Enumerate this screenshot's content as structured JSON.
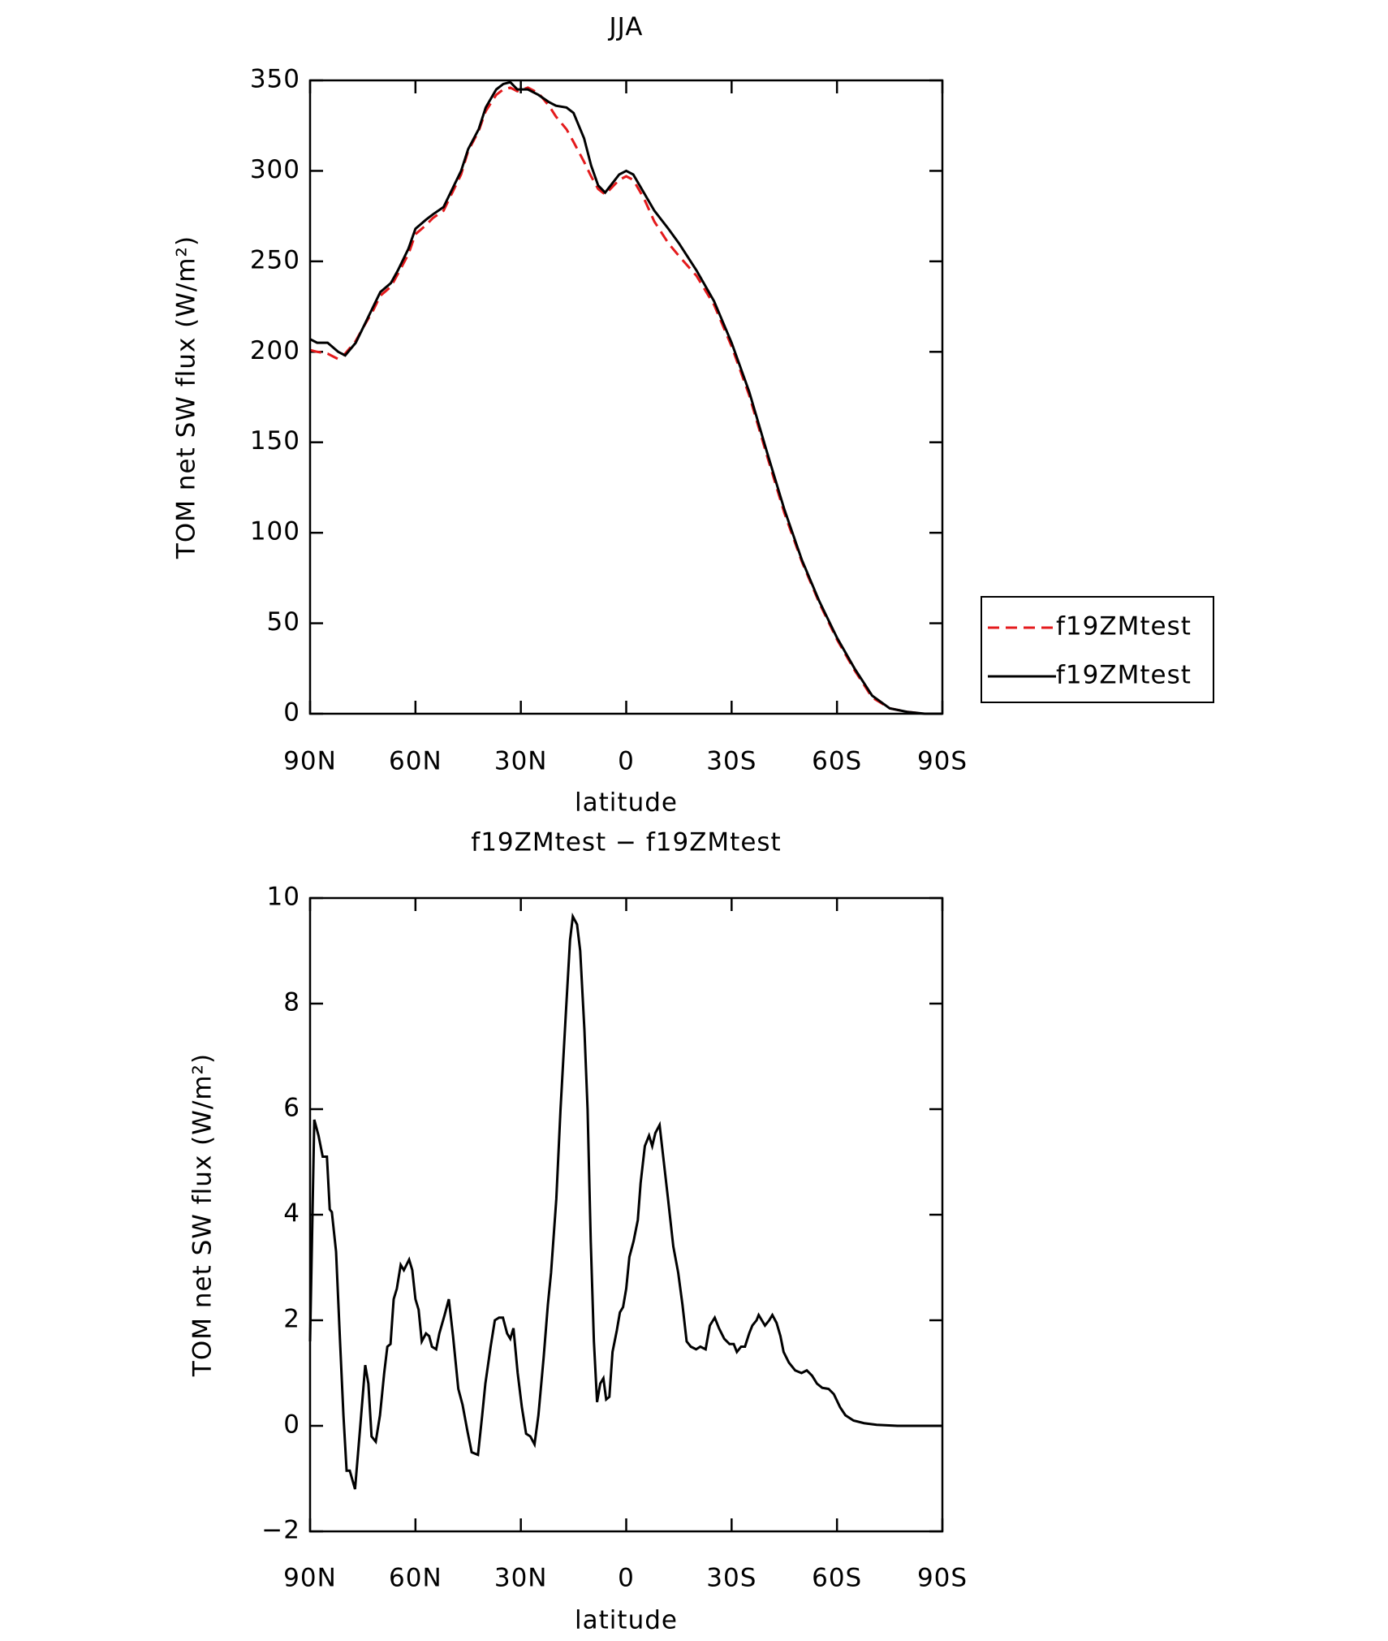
{
  "chart_data": [
    {
      "type": "line",
      "title": "JJA",
      "xlabel": "latitude",
      "ylabel": "TOM net SW flux (W/m²)",
      "x": [
        90,
        88,
        85,
        82,
        80,
        77,
        75,
        72,
        70,
        67,
        65,
        62,
        60,
        57,
        55,
        52,
        50,
        47,
        45,
        42,
        40,
        37,
        35,
        33,
        31,
        28,
        25,
        22,
        20,
        17,
        15,
        12,
        10,
        8,
        6,
        4,
        2,
        0,
        -2,
        -5,
        -8,
        -12,
        -15,
        -20,
        -25,
        -30,
        -35,
        -40,
        -45,
        -50,
        -55,
        -60,
        -65,
        -70,
        -75,
        -80,
        -85,
        -90
      ],
      "series": [
        {
          "name": "f19ZMtest",
          "color": "#e41a1c",
          "dash": true,
          "values": [
            201,
            200,
            199,
            196,
            199,
            206,
            213,
            223,
            231,
            236,
            243,
            254,
            265,
            270,
            274,
            278,
            286,
            298,
            311,
            322,
            333,
            342,
            345,
            346,
            344,
            346,
            343,
            336,
            330,
            323,
            316,
            305,
            297,
            290,
            287,
            291,
            295,
            297,
            295,
            285,
            272,
            260,
            253,
            242,
            226,
            203,
            176,
            143,
            111,
            84,
            61,
            41,
            24,
            9,
            3,
            1,
            0,
            0
          ]
        },
        {
          "name": "f19ZMtest",
          "color": "#000000",
          "dash": false,
          "values": [
            207,
            205,
            205,
            200,
            198,
            205,
            213,
            225,
            233,
            238,
            245,
            257,
            268,
            273,
            276,
            280,
            288,
            300,
            312,
            323,
            335,
            345,
            348,
            349,
            345,
            345,
            342,
            338,
            336,
            335,
            332,
            318,
            303,
            292,
            288,
            293,
            298,
            300,
            298,
            288,
            278,
            268,
            260,
            245,
            228,
            205,
            178,
            145,
            113,
            85,
            62,
            42,
            25,
            10,
            3,
            1,
            0,
            0
          ]
        }
      ],
      "xlim": [
        90,
        -90
      ],
      "xticks": [
        {
          "value": 90,
          "label": "90N"
        },
        {
          "value": 60,
          "label": "60N"
        },
        {
          "value": 30,
          "label": "30N"
        },
        0,
        {
          "value": -30,
          "label": "30S"
        },
        {
          "value": -60,
          "label": "60S"
        },
        {
          "value": -90,
          "label": "90S"
        }
      ],
      "ylim": [
        0,
        350
      ],
      "yticks": [
        0,
        50,
        100,
        150,
        200,
        250,
        300,
        350
      ],
      "legend": "right"
    },
    {
      "type": "line",
      "title": "f19ZMtest − f19ZMtest",
      "xlabel": "latitude",
      "ylabel": "TOM net SW flux (W/m²)",
      "x": [
        90,
        88.8,
        87.6,
        86.4,
        85.2,
        84.4,
        83.8,
        82.6,
        81.4,
        80.5,
        79.6,
        78.7,
        77.2,
        75.7,
        74.3,
        73.4,
        72.5,
        71.3,
        70.1,
        68.9,
        68,
        67.1,
        66.2,
        65.3,
        64.2,
        63.3,
        61.8,
        60.9,
        60,
        59.1,
        58.2,
        57,
        56.1,
        55.3,
        54.1,
        53.2,
        51.7,
        50.5,
        49.3,
        47.8,
        46.6,
        45.2,
        44,
        42.2,
        41,
        40.1,
        38.6,
        37.4,
        36.2,
        35.1,
        33.9,
        33,
        32.1,
        30.9,
        29.7,
        28.5,
        27.3,
        26.1,
        25,
        23.5,
        22.3,
        21.4,
        19.9,
        18.7,
        17.2,
        16,
        15.2,
        14,
        13.1,
        11.9,
        11,
        10.1,
        9.2,
        8.3,
        7.4,
        6.5,
        5.7,
        4.8,
        3.9,
        2.7,
        1.8,
        0.9,
        0,
        -0.9,
        -2.1,
        -3.3,
        -4.1,
        -5.3,
        -6.5,
        -7.4,
        -8.3,
        -9.5,
        -10.7,
        -11.9,
        -13.4,
        -14.8,
        -16,
        -17.2,
        -18.4,
        -19.9,
        -21.1,
        -22.6,
        -23.8,
        -25.2,
        -26.4,
        -27.9,
        -29.4,
        -30.6,
        -31.5,
        -32.7,
        -33.8,
        -35,
        -35.9,
        -37.1,
        -37.7,
        -38.6,
        -39.5,
        -40.7,
        -41.6,
        -42.8,
        -43.9,
        -44.8,
        -46.3,
        -48.1,
        -49.9,
        -51.4,
        -52.9,
        -54.3,
        -55.8,
        -57.6,
        -59.1,
        -60.9,
        -62.4,
        -64.7,
        -67.7,
        -71.3,
        -77.2,
        -90
      ],
      "values": [
        1.6,
        5.8,
        5.5,
        5.1,
        5.1,
        4.1,
        4.05,
        3.3,
        1.5,
        0.2,
        -0.85,
        -0.85,
        -1.2,
        0,
        1.15,
        0.8,
        -0.2,
        -0.3,
        0.2,
        1.0,
        1.5,
        1.55,
        2.4,
        2.6,
        3.05,
        2.95,
        3.15,
        2.95,
        2.4,
        2.2,
        1.6,
        1.75,
        1.7,
        1.5,
        1.45,
        1.75,
        2.1,
        2.4,
        1.7,
        0.7,
        0.4,
        -0.1,
        -0.5,
        -0.55,
        0.2,
        0.8,
        1.5,
        2.0,
        2.05,
        2.05,
        1.75,
        1.65,
        1.85,
        1.0,
        0.35,
        -0.15,
        -0.2,
        -0.35,
        0.2,
        1.3,
        2.3,
        2.9,
        4.3,
        6.0,
        7.8,
        9.2,
        9.65,
        9.5,
        9.0,
        7.5,
        6.0,
        3.5,
        1.6,
        0.45,
        0.8,
        0.9,
        0.5,
        0.55,
        1.4,
        1.8,
        2.15,
        2.25,
        2.6,
        3.2,
        3.5,
        3.9,
        4.6,
        5.3,
        5.5,
        5.3,
        5.55,
        5.7,
        5.0,
        4.3,
        3.4,
        2.9,
        2.3,
        1.6,
        1.5,
        1.45,
        1.5,
        1.45,
        1.9,
        2.05,
        1.85,
        1.65,
        1.55,
        1.55,
        1.4,
        1.5,
        1.5,
        1.75,
        1.9,
        2.0,
        2.1,
        2.0,
        1.9,
        2.0,
        2.1,
        1.95,
        1.7,
        1.4,
        1.2,
        1.05,
        1.0,
        1.05,
        0.95,
        0.8,
        0.72,
        0.7,
        0.6,
        0.35,
        0.2,
        0.1,
        0.05,
        0.02,
        0,
        0
      ],
      "color": "#000000",
      "xlim": [
        90,
        -90
      ],
      "xticks": [
        {
          "value": 90,
          "label": "90N"
        },
        {
          "value": 60,
          "label": "60N"
        },
        {
          "value": 30,
          "label": "30N"
        },
        0,
        {
          "value": -30,
          "label": "30S"
        },
        {
          "value": -60,
          "label": "60S"
        },
        {
          "value": -90,
          "label": "90S"
        }
      ],
      "ylim": [
        -2,
        10
      ],
      "yticks": [
        {
          "value": -2,
          "label": "−2"
        },
        0,
        2,
        4,
        6,
        8,
        10
      ]
    }
  ]
}
